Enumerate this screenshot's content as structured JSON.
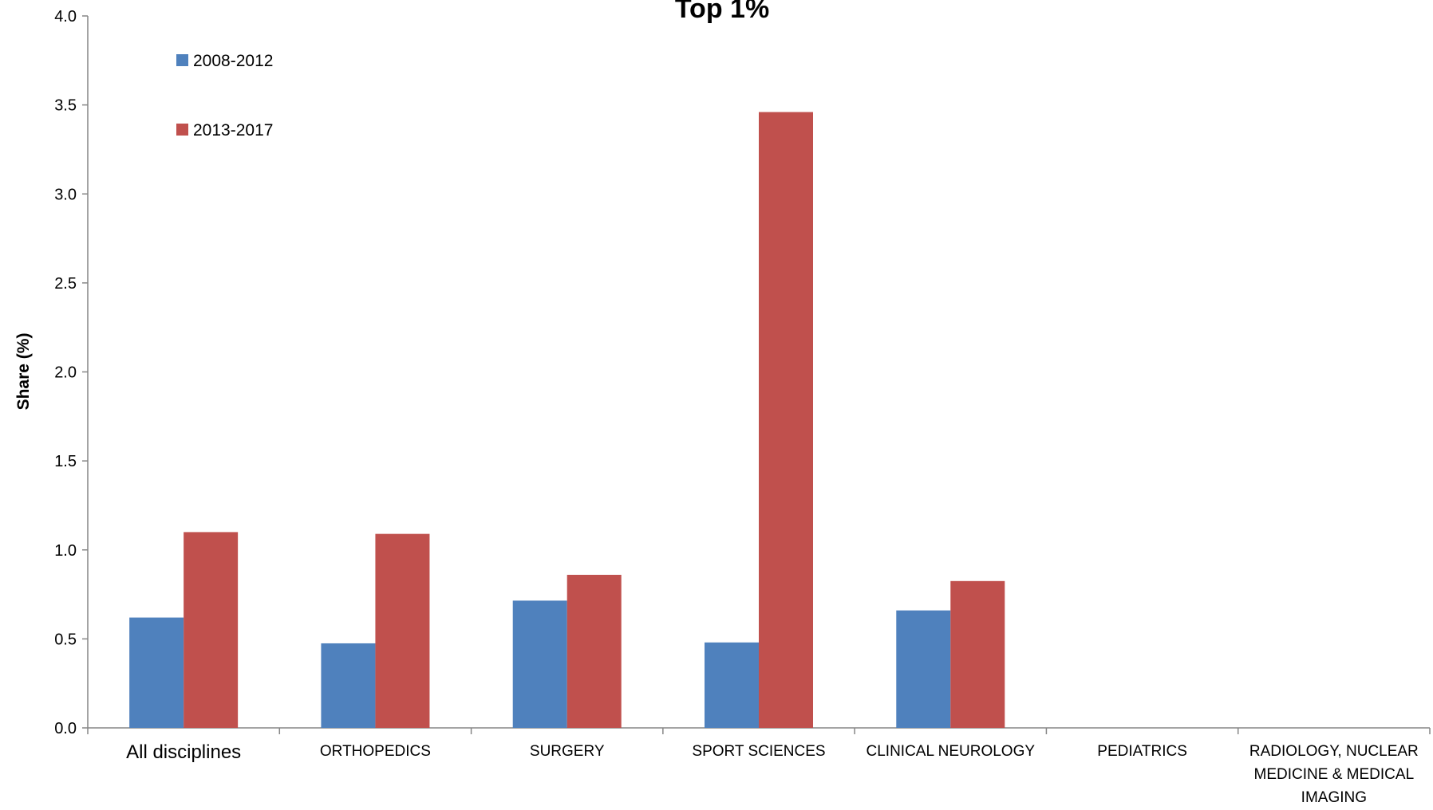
{
  "chart_data": {
    "type": "bar",
    "title": "Top 1%",
    "xlabel": "",
    "ylabel": "Share (%)",
    "ylim": [
      0,
      4.0
    ],
    "yticks": [
      "0.0",
      "0.5",
      "1.0",
      "1.5",
      "2.0",
      "2.5",
      "3.0",
      "3.5",
      "4.0"
    ],
    "categories": [
      "All disciplines",
      "ORTHOPEDICS",
      "SURGERY",
      "SPORT SCIENCES",
      "CLINICAL NEUROLOGY",
      "PEDIATRICS",
      "RADIOLOGY, NUCLEAR MEDICINE & MEDICAL IMAGING"
    ],
    "category_lines": [
      [
        "All disciplines"
      ],
      [
        "ORTHOPEDICS"
      ],
      [
        "SURGERY"
      ],
      [
        "SPORT SCIENCES"
      ],
      [
        "CLINICAL NEUROLOGY"
      ],
      [
        "PEDIATRICS"
      ],
      [
        "RADIOLOGY, NUCLEAR",
        "MEDICINE & MEDICAL",
        "IMAGING"
      ]
    ],
    "series": [
      {
        "name": "2008-2012",
        "color": "#4f81bd",
        "values": [
          0.62,
          0.475,
          0.715,
          0.48,
          0.66,
          0,
          0
        ]
      },
      {
        "name": "2013-2017",
        "color": "#c0504d",
        "values": [
          1.1,
          1.09,
          0.86,
          3.46,
          0.825,
          0,
          0
        ]
      }
    ],
    "grid": false,
    "legend": "top-left"
  }
}
